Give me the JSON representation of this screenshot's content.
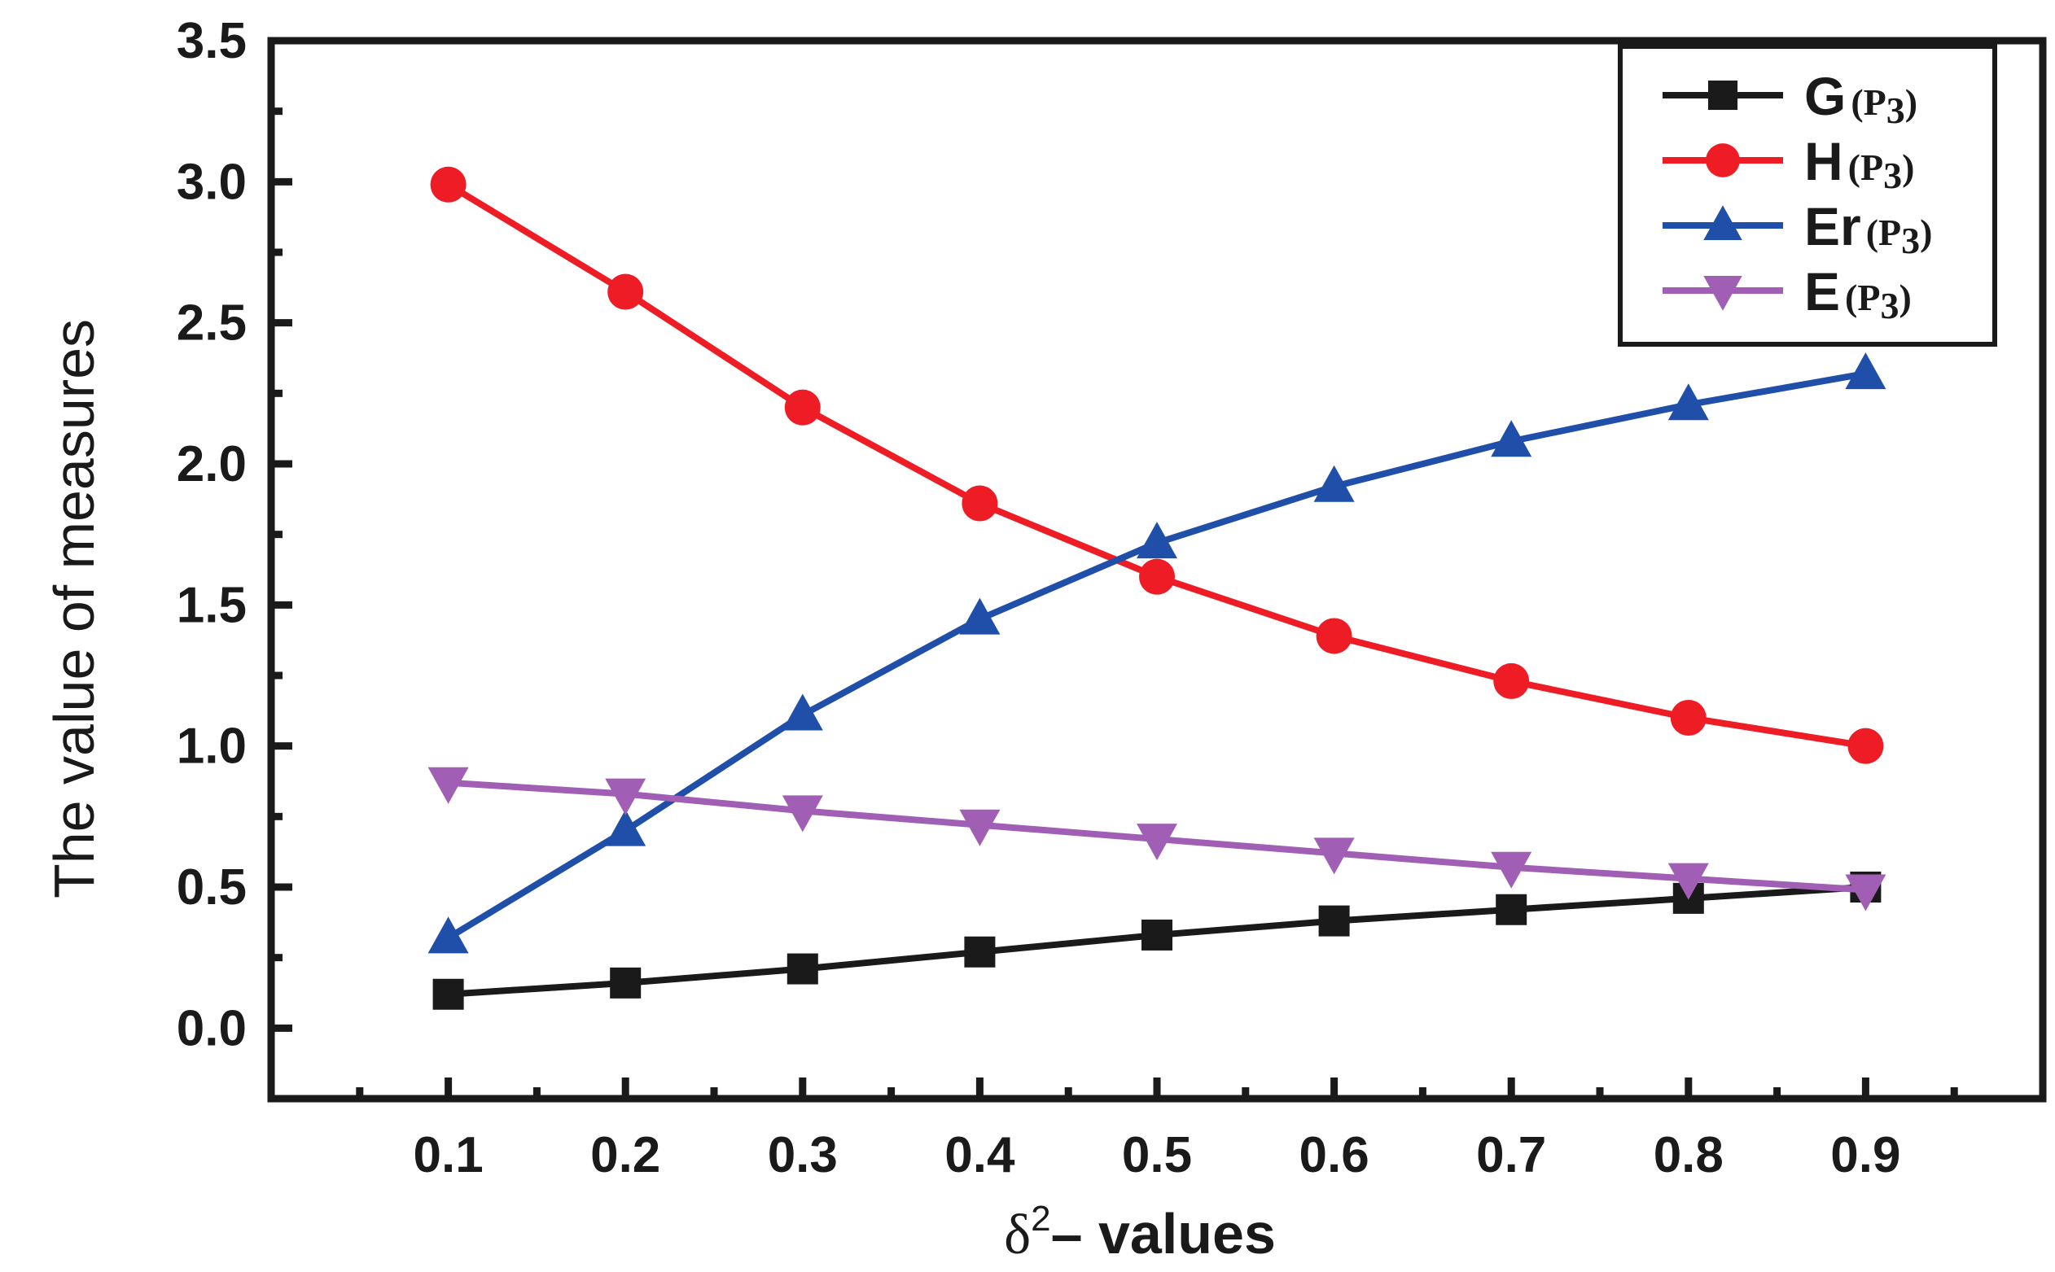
{
  "chart_data": {
    "type": "line",
    "title": "",
    "xlabel": "δ²– values",
    "xlabel_parts": {
      "symbol": "δ",
      "superscript": "2",
      "rest": "– values"
    },
    "ylabel": "The value of measures",
    "xlim": [
      0,
      1.0
    ],
    "ylim": [
      -0.25,
      3.5
    ],
    "x": [
      0.1,
      0.2,
      0.3,
      0.4,
      0.5,
      0.6,
      0.7,
      0.8,
      0.9
    ],
    "x_tick_labels": [
      "0.1",
      "0.2",
      "0.3",
      "0.4",
      "0.5",
      "0.6",
      "0.7",
      "0.8",
      "0.9"
    ],
    "y_ticks": [
      0.0,
      0.5,
      1.0,
      1.5,
      2.0,
      2.5,
      3.0,
      3.5
    ],
    "y_tick_labels": [
      "0.0",
      "0.5",
      "1.0",
      "1.5",
      "2.0",
      "2.5",
      "3.0",
      "3.5"
    ],
    "legend_position": "top-right",
    "grid": false,
    "series": [
      {
        "name": "G(P3)",
        "label_main": "G",
        "label_sub": "(P",
        "label_subscript": "3",
        "label_close": ")",
        "marker": "square",
        "color": "#1a1a1a",
        "values": [
          0.12,
          0.16,
          0.21,
          0.27,
          0.33,
          0.38,
          0.42,
          0.46,
          0.5
        ]
      },
      {
        "name": "H(P3)",
        "label_main": "H",
        "label_sub": "(P",
        "label_subscript": "3",
        "label_close": ")",
        "marker": "circle",
        "color": "#ee1c25",
        "values": [
          2.99,
          2.61,
          2.2,
          1.86,
          1.6,
          1.39,
          1.23,
          1.1,
          1.0
        ]
      },
      {
        "name": "Er(P3)",
        "label_main": "Er",
        "label_sub": "(P",
        "label_subscript": "3",
        "label_close": ")",
        "marker": "triangle-up",
        "color": "#1f4fa8",
        "values": [
          0.32,
          0.7,
          1.11,
          1.45,
          1.72,
          1.92,
          2.08,
          2.21,
          2.32
        ]
      },
      {
        "name": "E(P3)",
        "label_main": "E",
        "label_sub": "(P",
        "label_subscript": "3",
        "label_close": ")",
        "marker": "triangle-down",
        "color": "#a05fb4",
        "values": [
          0.87,
          0.83,
          0.77,
          0.72,
          0.67,
          0.62,
          0.57,
          0.53,
          0.49
        ]
      }
    ]
  }
}
